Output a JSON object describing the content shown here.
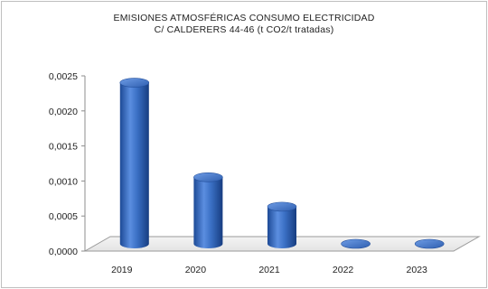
{
  "chart_data": {
    "type": "bar",
    "title_line1": "EMISIONES  ATMOSFÉRICAS  CONSUMO  ELECTRICIDAD",
    "title_line2": "C/  CALDERERS  44-46  (t CO2/t tratadas)",
    "categories": [
      "2019",
      "2020",
      "2021",
      "2022",
      "2023"
    ],
    "values": [
      0.0023,
      0.00095,
      0.00053,
      0.0,
      0.0
    ],
    "yticks": [
      "0,0000",
      "0,0005",
      "0,0010",
      "0,0015",
      "0,0020",
      "0,0025"
    ],
    "ylim": [
      0,
      0.0025
    ],
    "grid": false,
    "bar_color": "#3a6fc4"
  }
}
